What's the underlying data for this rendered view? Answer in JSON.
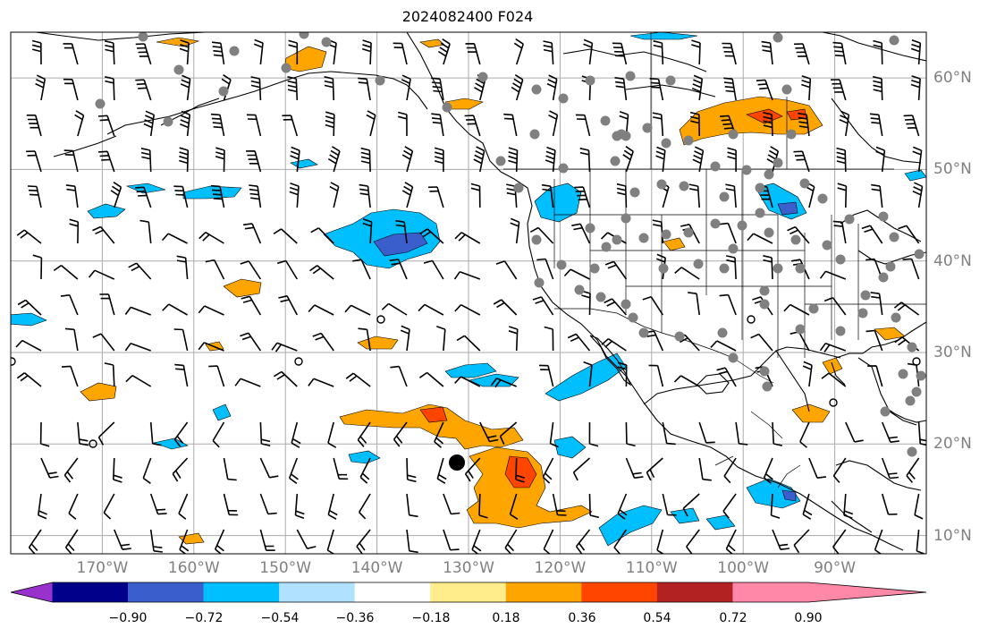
{
  "title": "2024082400 F024",
  "map": {
    "longitude_labels": [
      "170°W",
      "160°W",
      "150°W",
      "140°W",
      "130°W",
      "120°W",
      "110°W",
      "100°W",
      "90°W"
    ],
    "latitude_labels": [
      "60°N",
      "50°N",
      "40°N",
      "30°N",
      "20°N",
      "10°N"
    ],
    "extent": {
      "lon_min": -180,
      "lon_max": -80,
      "lat_min": 8,
      "lat_max": 65
    }
  },
  "colorbar": {
    "tick_labels": [
      "−0.90",
      "−0.72",
      "−0.54",
      "−0.36",
      "−0.18",
      "0.18",
      "0.36",
      "0.54",
      "0.72",
      "0.90"
    ],
    "colors": [
      "#9932cc",
      "#00008b",
      "#3a5fcd",
      "#00bfff",
      "#b0e2ff",
      "#ffffff",
      "#ffec8b",
      "#ffa500",
      "#ff4500",
      "#b22222",
      "#ff88a8"
    ]
  },
  "colors": {
    "coast": "#000000",
    "grid": "#aaaaaa",
    "station_dot": "#808080",
    "label": "#808080"
  },
  "markers": {
    "storm_center": {
      "lon": -131,
      "lat": 17.5
    }
  }
}
